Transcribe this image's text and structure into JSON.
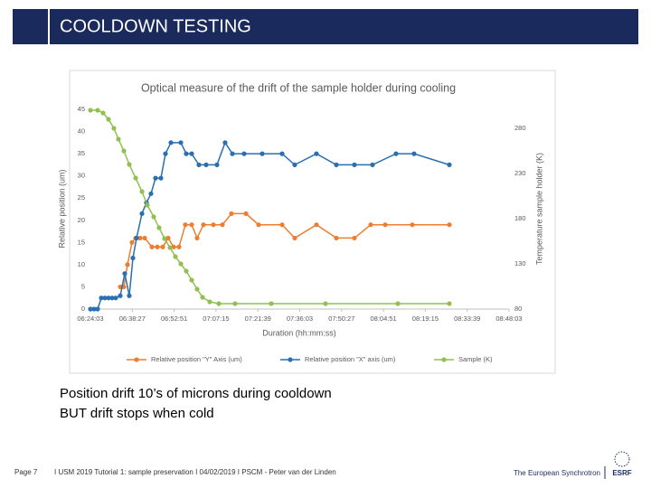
{
  "header": {
    "title": "COOLDOWN TESTING"
  },
  "chart_data": {
    "type": "line",
    "title": "Optical measure of the drift of the sample holder during cooling",
    "x_label": "Duration (hh:mm:ss)",
    "y_label": "Relative position (um)",
    "y2_label": "Temperature sample holder (K)",
    "xlim": [
      23043,
      31683
    ],
    "xticks": [
      {
        "value": 23043,
        "label": "06:24:03"
      },
      {
        "value": 23907,
        "label": "06:38:27"
      },
      {
        "value": 24771,
        "label": "06:52:51"
      },
      {
        "value": 25635,
        "label": "07:07:15"
      },
      {
        "value": 26499,
        "label": "07:21:39"
      },
      {
        "value": 27363,
        "label": "07:36:03"
      },
      {
        "value": 28227,
        "label": "07:50:27"
      },
      {
        "value": 29091,
        "label": "08:04:51"
      },
      {
        "value": 29955,
        "label": "08:19:15"
      },
      {
        "value": 30819,
        "label": "08:33:39"
      },
      {
        "value": 31683,
        "label": "08:48:03"
      }
    ],
    "ylim": [
      0,
      45
    ],
    "yticks": [
      0,
      5,
      10,
      15,
      20,
      25,
      30,
      35,
      40,
      45
    ],
    "y2lim": [
      80,
      301
    ],
    "y2ticks": [
      80,
      130,
      180,
      230,
      280
    ],
    "grid": false,
    "legend": "bottom",
    "series": [
      {
        "name": "Relative position \"Y\" Axis (um)",
        "color": "#ed7d31",
        "x": [
          23659,
          23733,
          23808,
          23901,
          23976,
          24069,
          24163,
          24312,
          24424,
          24536,
          24648,
          24760,
          24872,
          25002,
          25133,
          25245,
          25376,
          25581,
          25767,
          25954,
          26253,
          26514,
          26999,
          27260,
          27708,
          28118,
          28492,
          28828,
          29127,
          29686,
          30451
        ],
        "values": [
          5,
          5,
          10,
          15,
          16,
          16,
          16,
          14,
          14,
          14,
          16,
          14,
          14,
          19,
          19,
          16,
          19,
          19,
          19,
          21.5,
          21.5,
          19,
          19,
          16,
          19,
          16,
          16,
          19,
          19,
          19,
          19
        ]
      },
      {
        "name": "Relative position \"X\" axis (um)",
        "color": "#2a6fb0",
        "x": [
          23043,
          23118,
          23192,
          23267,
          23342,
          23416,
          23491,
          23565,
          23659,
          23752,
          23845,
          23920,
          23995,
          24107,
          24200,
          24293,
          24387,
          24498,
          24592,
          24704,
          24909,
          25021,
          25133,
          25282,
          25431,
          25655,
          25823,
          25973,
          26215,
          26588,
          26999,
          27260,
          27708,
          28118,
          28492,
          28865,
          29350,
          29723,
          30451
        ],
        "values": [
          0,
          0,
          0,
          2.5,
          2.5,
          2.5,
          2.5,
          2.5,
          3,
          8,
          3,
          11.5,
          16,
          21.5,
          24,
          26,
          29.5,
          29.5,
          35,
          37.5,
          37.5,
          35,
          35,
          32.5,
          32.5,
          32.5,
          37.5,
          35,
          35,
          35,
          35,
          32.5,
          35,
          32.5,
          32.5,
          32.5,
          35,
          35,
          32.5
        ]
      },
      {
        "name": "Sample (K)",
        "color": "#92c050",
        "axis": "y2",
        "x": [
          23043,
          23192,
          23304,
          23416,
          23528,
          23621,
          23733,
          23845,
          23976,
          24107,
          24219,
          24349,
          24461,
          24573,
          24685,
          24797,
          24909,
          25021,
          25133,
          25245,
          25357,
          25506,
          25693,
          26029,
          26775,
          27895,
          29388,
          30451
        ],
        "values": [
          300,
          300,
          297,
          290,
          280,
          268,
          255,
          240,
          225,
          210,
          195,
          182,
          170,
          158,
          148,
          138,
          130,
          122,
          112,
          102,
          93,
          88,
          86,
          86,
          86,
          86,
          86,
          86
        ]
      }
    ]
  },
  "bullets": [
    "Position drift 10’s of microns during cooldown",
    "BUT drift stops when cold"
  ],
  "footer": {
    "page": "Page 7",
    "text": "I USM 2019 Tutorial 1: sample preservation I 04/02/2019 I PSCM - Peter van der Linden",
    "org": "The European Synchrotron",
    "logo": "ESRF"
  }
}
